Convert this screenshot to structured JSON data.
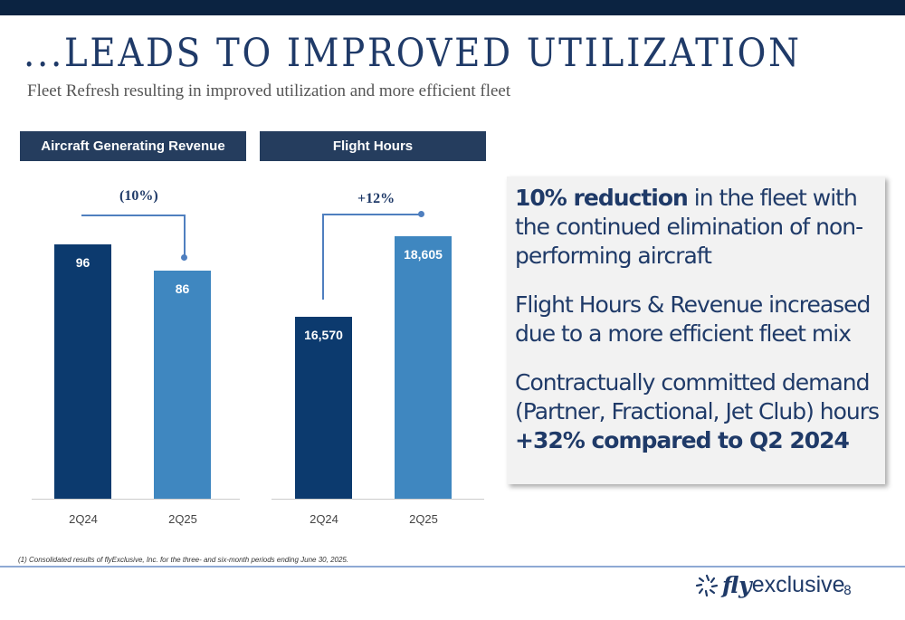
{
  "title": "...LEADS TO IMPROVED UTILIZATION",
  "subtitle": "Fleet Refresh resulting in improved utilization and more efficient fleet",
  "colors": {
    "bar_prior": "#0c3a6e",
    "bar_current": "#3f87c0",
    "header": "#253d5e",
    "bracket": "#4f7fbf"
  },
  "chart_data": [
    {
      "type": "bar",
      "title": "Aircraft Generating Revenue",
      "categories": [
        "2Q24",
        "2Q25"
      ],
      "values": [
        96,
        86
      ],
      "data_labels": [
        "96",
        "86"
      ],
      "change_label": "(10%)",
      "ylim": [
        0,
        120
      ],
      "grid": false
    },
    {
      "type": "bar",
      "title": "Flight Hours",
      "categories": [
        "2Q24",
        "2Q25"
      ],
      "values": [
        16570,
        18605
      ],
      "data_labels": [
        "16,570",
        "18,605"
      ],
      "change_label": "+12%",
      "ylim": [
        12000,
        20000
      ],
      "grid": false
    }
  ],
  "callout": {
    "p1_bold": "10% reduction",
    "p1_rest": " in the fleet with the continued elimination of non-performing aircraft",
    "p2": "Flight Hours & Revenue increased due to a more efficient fleet mix",
    "p3": "Contractually committed demand (Partner, Fractional, Jet Club) hours ",
    "p3_bold": "+32% compared to Q2 2024"
  },
  "footnote": "(1) Consolidated results of flyExclusive, Inc. for the three- and six-month periods ending June 30, 2025.",
  "logo": {
    "fly": "fly",
    "exclusive": "exclusive"
  },
  "page_number": "8"
}
